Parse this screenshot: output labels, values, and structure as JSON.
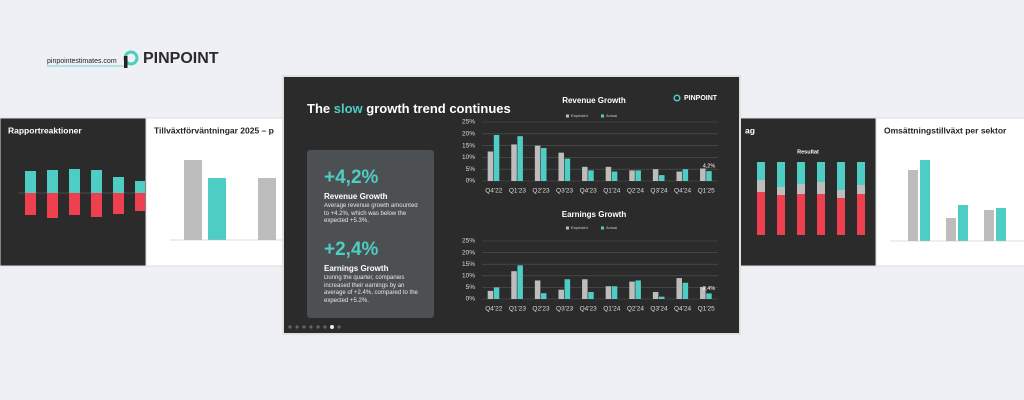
{
  "header": {
    "site": "pinpointestimates.com",
    "brand": "PINPOINT"
  },
  "side_slides": {
    "left_1_title": "Rapportreaktioner",
    "left_2_title": "Tillväxtförväntningar 2025 – p",
    "right_1_title": "ag",
    "right_1_subtitle": "Resultat",
    "right_2_title": "Omsättningstillväxt per sektor"
  },
  "main_slide": {
    "brand": "PINPOINT",
    "title_before": "The",
    "title_highlight": "slow",
    "title_after": "growth trend continues",
    "kpis": [
      {
        "value": "+4,2%",
        "label": "Revenue Growth",
        "text": "Average revenue growth amounted to +4.2%, which was below the expected +5.3%."
      },
      {
        "value": "+2,4%",
        "label": "Earnings Growth",
        "text": "During the quarter, companies increased their earnings by an average of +2.4%, compared to the expected +5.2%."
      }
    ]
  },
  "chart_data": [
    {
      "type": "bar",
      "title": "Revenue Growth",
      "categories": [
        "Q4'22",
        "Q1'23",
        "Q2'23",
        "Q3'23",
        "Q4'23",
        "Q1'24",
        "Q2'24",
        "Q3'24",
        "Q4'24",
        "Q1'25"
      ],
      "series": [
        {
          "name": "Expected",
          "color": "#bdbdbd",
          "values": [
            12.5,
            15.5,
            15,
            12,
            6,
            6,
            4.5,
            5,
            4,
            5.3
          ]
        },
        {
          "name": "Actual",
          "color": "#4ecdc4",
          "values": [
            19.5,
            19,
            14,
            9.5,
            4.5,
            4,
            4.5,
            2.5,
            5,
            4.2
          ],
          "value_labels": [
            null,
            null,
            null,
            null,
            null,
            null,
            null,
            null,
            null,
            "4,2%"
          ]
        }
      ],
      "ylim": [
        0,
        25
      ],
      "yticks": [
        {
          "value": 0,
          "label": "0%"
        },
        {
          "value": 5,
          "label": "5%"
        },
        {
          "value": 10,
          "label": "10%"
        },
        {
          "value": 15,
          "label": "15%"
        },
        {
          "value": 20,
          "label": "20%"
        },
        {
          "value": 25,
          "label": "25%"
        }
      ],
      "grid": true
    },
    {
      "type": "bar",
      "title": "Earnings Growth",
      "categories": [
        "Q4'22",
        "Q1'23",
        "Q2'23",
        "Q3'23",
        "Q4'23",
        "Q1'24",
        "Q2'24",
        "Q3'24",
        "Q4'24",
        "Q1'25"
      ],
      "series": [
        {
          "name": "Expected",
          "color": "#bdbdbd",
          "values": [
            3.5,
            12,
            8,
            4,
            8.5,
            5.5,
            7.5,
            3,
            9,
            5.2
          ]
        },
        {
          "name": "Actual",
          "color": "#4ecdc4",
          "values": [
            5,
            14.5,
            2.5,
            8.5,
            3,
            5.5,
            8,
            1,
            7,
            2.4
          ],
          "value_labels": [
            null,
            null,
            null,
            null,
            null,
            null,
            null,
            null,
            null,
            "2,4%"
          ]
        }
      ],
      "ylim": [
        0,
        25
      ],
      "yticks": [
        {
          "value": 0,
          "label": "0%"
        },
        {
          "value": 5,
          "label": "5%"
        },
        {
          "value": 10,
          "label": "10%"
        },
        {
          "value": 15,
          "label": "15%"
        },
        {
          "value": 20,
          "label": "20%"
        },
        {
          "value": 25,
          "label": "25%"
        }
      ],
      "grid": true
    }
  ]
}
